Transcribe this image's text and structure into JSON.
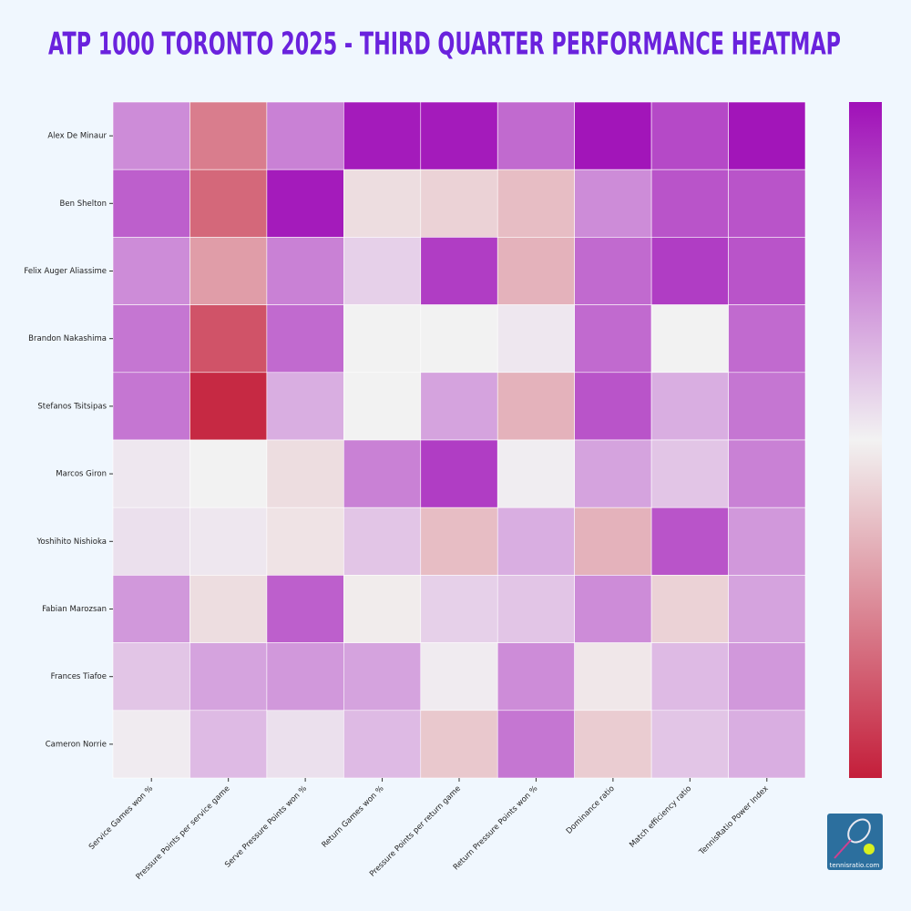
{
  "chart_data": {
    "type": "heatmap",
    "title": "ATP 1000 TORONTO 2025 - THIRD QUARTER PERFORMANCE HEATMAP",
    "rows": [
      "Alex De Minaur",
      "Ben Shelton",
      "Felix Auger Aliassime",
      "Brandon Nakashima",
      "Stefanos Tsitsipas",
      "Marcos Giron",
      "Yoshihito Nishioka",
      "Fabian Marozsan",
      "Frances Tiafoe",
      "Cameron Norrie"
    ],
    "columns": [
      "Service Games won %",
      "Pressure Points per service game",
      "Serve Pressure Points won %",
      "Return Games won %",
      "Pressure Points per return game",
      "Return Pressure Points won %",
      "Dominance ratio",
      "Match efficiency ratio",
      "TennisRatio Power Index"
    ],
    "values": [
      [
        0.45,
        -0.55,
        0.5,
        0.95,
        0.95,
        0.6,
        0.98,
        0.75,
        0.98
      ],
      [
        0.65,
        -0.65,
        0.95,
        -0.1,
        -0.15,
        -0.25,
        0.45,
        0.7,
        0.7
      ],
      [
        0.45,
        -0.4,
        0.5,
        0.15,
        0.8,
        -0.3,
        0.6,
        0.8,
        0.7
      ],
      [
        0.55,
        -0.75,
        0.6,
        0.0,
        0.0,
        0.05,
        0.6,
        0.0,
        0.6
      ],
      [
        0.55,
        -0.95,
        0.3,
        0.0,
        0.35,
        -0.3,
        0.7,
        0.3,
        0.55
      ],
      [
        0.05,
        0.0,
        -0.1,
        0.5,
        0.8,
        0.02,
        0.35,
        0.2,
        0.5
      ],
      [
        0.08,
        0.05,
        -0.07,
        0.2,
        -0.25,
        0.3,
        -0.3,
        0.7,
        0.4
      ],
      [
        0.4,
        -0.1,
        0.65,
        -0.03,
        0.15,
        0.2,
        0.45,
        -0.15,
        0.35
      ],
      [
        0.2,
        0.35,
        0.4,
        0.35,
        0.03,
        0.45,
        -0.05,
        0.25,
        0.4
      ],
      [
        0.03,
        0.25,
        0.08,
        0.25,
        -0.2,
        0.55,
        -0.18,
        0.2,
        0.3
      ]
    ],
    "zlim": [
      -1,
      1
    ],
    "colors": [
      "#c41e3a",
      "#f2f2f2",
      "#a010b8"
    ],
    "logo_text": "tennisratio.com"
  }
}
